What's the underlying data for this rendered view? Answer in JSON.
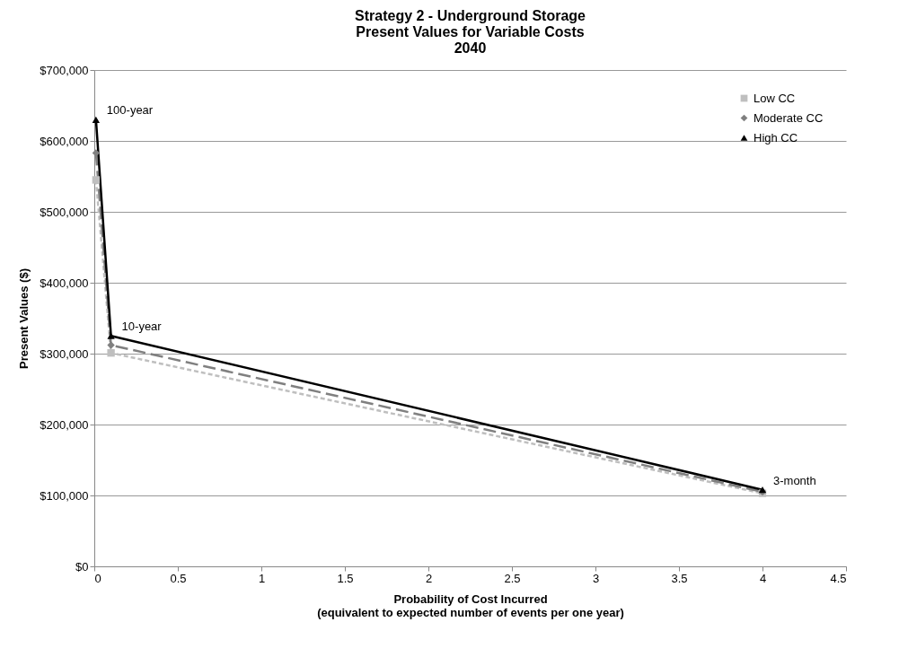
{
  "chart_data": {
    "type": "line",
    "title": [
      "Strategy 2 - Underground Storage",
      "Present Values for Variable Costs",
      "2040"
    ],
    "xlabel": [
      "Probability of Cost Incurred",
      "(equivalent to expected number of events per one year)"
    ],
    "ylabel": "Present Values ($)",
    "x": [
      0.01,
      0.1,
      4
    ],
    "series": [
      {
        "name": "Low CC",
        "color": "#bfbfbf",
        "values": [
          545000,
          301000,
          103000
        ],
        "line_style": "dashed",
        "marker": "square"
      },
      {
        "name": "Moderate CC",
        "color": "#808080",
        "values": [
          583000,
          312000,
          105000
        ],
        "line_style": "longdash",
        "marker": "diamond"
      },
      {
        "name": "High CC",
        "color": "#000000",
        "values": [
          630000,
          325000,
          108000
        ],
        "line_style": "solid",
        "marker": "triangle"
      }
    ],
    "xlim": [
      0,
      4.5
    ],
    "xticks": [
      0,
      0.5,
      1,
      1.5,
      2,
      2.5,
      3,
      3.5,
      4,
      4.5
    ],
    "ylim": [
      0,
      700000
    ],
    "yticks": [
      {
        "value": 0,
        "label": "$0"
      },
      {
        "value": 100000,
        "label": "$100,000"
      },
      {
        "value": 200000,
        "label": "$200,000"
      },
      {
        "value": 300000,
        "label": "$300,000"
      },
      {
        "value": 400000,
        "label": "$400,000"
      },
      {
        "value": 500000,
        "label": "$500,000"
      },
      {
        "value": 600000,
        "label": "$600,000"
      },
      {
        "value": 700000,
        "label": "$700,000"
      }
    ],
    "grid": "y",
    "legend": "top right",
    "annotations": [
      {
        "text": "100-year",
        "x": 0.01,
        "y": 630000
      },
      {
        "text": "10-year",
        "x": 0.1,
        "y": 325000
      },
      {
        "text": "3-month",
        "x": 4,
        "y": 108000
      }
    ]
  }
}
